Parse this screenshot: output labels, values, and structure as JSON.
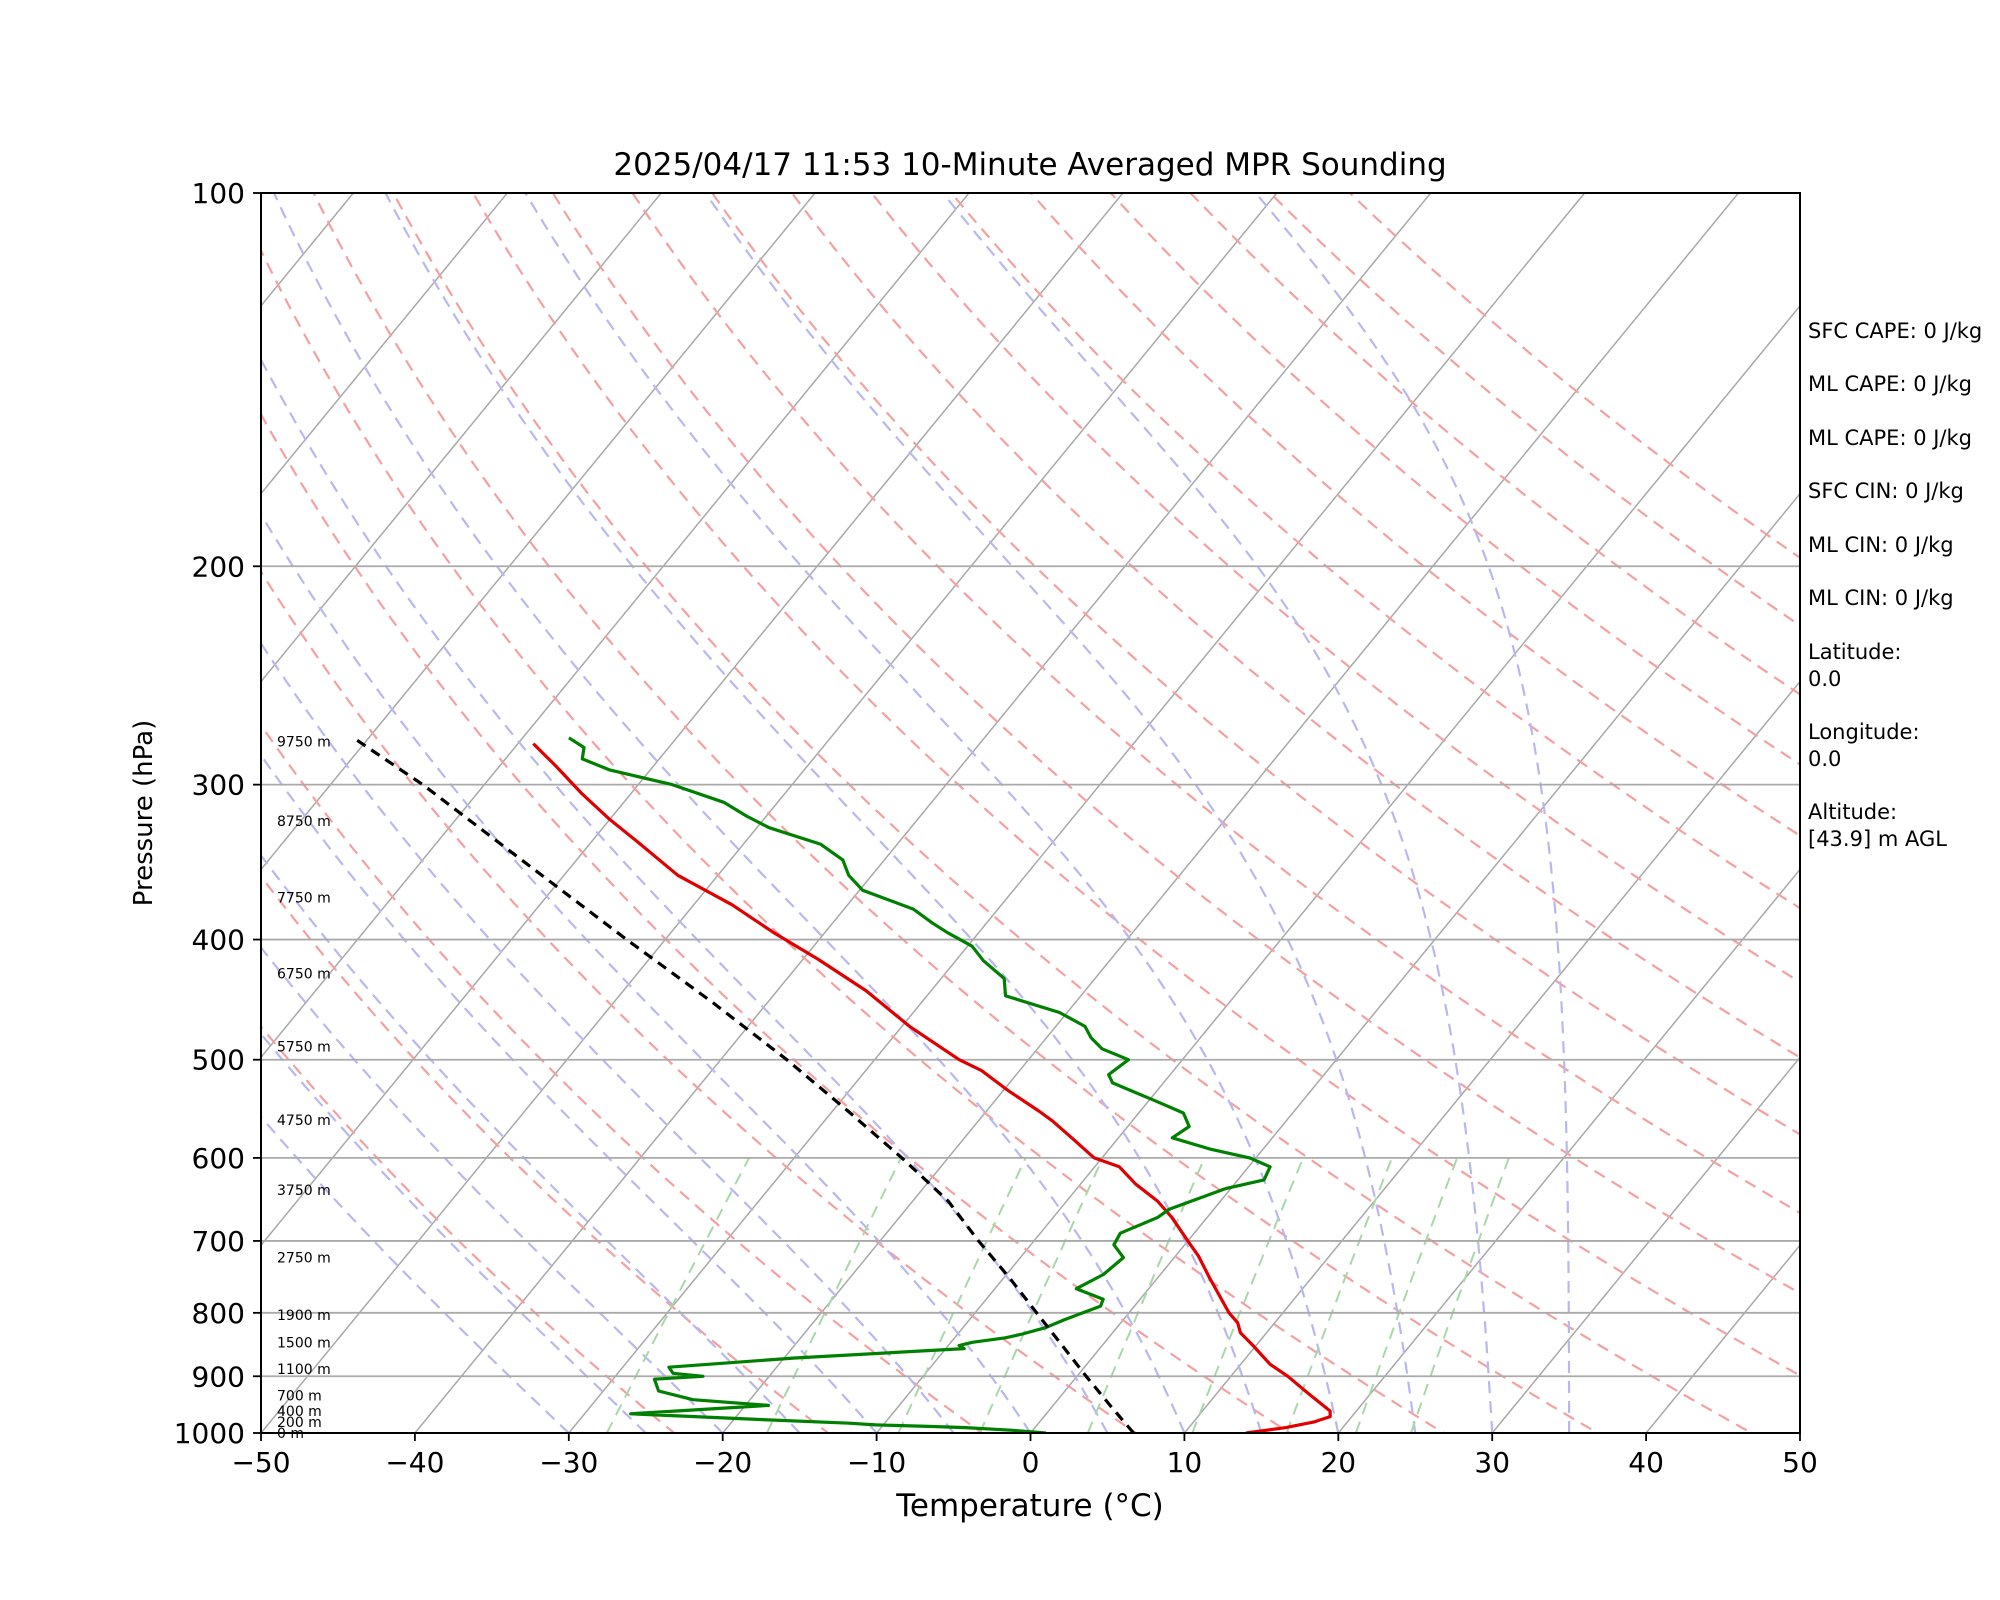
{
  "chart_data": {
    "type": "skew-t",
    "title": "2025/04/17 11:53 10-Minute Averaged MPR Sounding",
    "xlabel": "Temperature (°C)",
    "ylabel": "Pressure (hPa)",
    "xlim": [
      -50,
      50
    ],
    "ylim": [
      1000,
      100
    ],
    "y_scale": "log",
    "x_ticks": [
      "−50",
      "−40",
      "−30",
      "−20",
      "−10",
      "0",
      "10",
      "20",
      "30",
      "40",
      "50"
    ],
    "y_ticks": [
      "100",
      "200",
      "300",
      "400",
      "500",
      "600",
      "700",
      "800",
      "900",
      "1000"
    ],
    "grid": "horizontal isobars at tick levels",
    "background_lines": [
      "dry adiabats (red dashed)",
      "moist adiabats (blue dashed)",
      "mixing ratio lines (green dashed)",
      "skewed isotherms (gray)"
    ],
    "height_labels": [
      {
        "text": "0 m",
        "p": 1000
      },
      {
        "text": "200 m",
        "p": 980
      },
      {
        "text": "400 m",
        "p": 960
      },
      {
        "text": "700 m",
        "p": 933
      },
      {
        "text": "1100 m",
        "p": 888
      },
      {
        "text": "1500 m",
        "p": 845
      },
      {
        "text": "1900 m",
        "p": 803
      },
      {
        "text": "2750 m",
        "p": 722
      },
      {
        "text": "3750 m",
        "p": 637
      },
      {
        "text": "4750 m",
        "p": 559
      },
      {
        "text": "5750 m",
        "p": 488
      },
      {
        "text": "6750 m",
        "p": 426
      },
      {
        "text": "7750 m",
        "p": 370
      },
      {
        "text": "8750 m",
        "p": 321
      },
      {
        "text": "9750 m",
        "p": 277
      }
    ],
    "series": [
      {
        "key": "temperature",
        "color": "#e00000",
        "points": [
          [
            14,
            1000
          ],
          [
            16.3,
            990
          ],
          [
            17.8,
            980
          ],
          [
            18.6,
            970
          ],
          [
            18.3,
            960
          ],
          [
            16,
            930
          ],
          [
            13.7,
            900
          ],
          [
            11.9,
            880
          ],
          [
            9.8,
            850
          ],
          [
            8.3,
            830
          ],
          [
            7.6,
            815
          ],
          [
            6.5,
            800
          ],
          [
            3.4,
            750
          ],
          [
            1.5,
            720
          ],
          [
            0,
            700
          ],
          [
            -2.3,
            670
          ],
          [
            -4.1,
            650
          ],
          [
            -6.4,
            630
          ],
          [
            -8.4,
            610
          ],
          [
            -10.5,
            600
          ],
          [
            -12.8,
            580
          ],
          [
            -15.2,
            560
          ],
          [
            -16.6,
            550
          ],
          [
            -19.6,
            530
          ],
          [
            -22.5,
            510
          ],
          [
            -24.5,
            500
          ],
          [
            -29.5,
            470
          ],
          [
            -34.2,
            440
          ],
          [
            -39,
            415
          ],
          [
            -43.3,
            395
          ],
          [
            -47.5,
            375
          ],
          [
            -52.6,
            355
          ],
          [
            -56.7,
            335
          ],
          [
            -60,
            320
          ],
          [
            -63.2,
            305
          ],
          [
            -66.3,
            290
          ],
          [
            -69,
            278
          ]
        ]
      },
      {
        "key": "dewpoint",
        "color": "#008000",
        "points": [
          [
            1,
            1000
          ],
          [
            -1.3,
            995
          ],
          [
            -4.5,
            990
          ],
          [
            -6.7,
            988
          ],
          [
            -10.5,
            985
          ],
          [
            -12.3,
            982
          ],
          [
            -18.5,
            975
          ],
          [
            -27,
            965
          ],
          [
            -18.5,
            950
          ],
          [
            -23.7,
            940
          ],
          [
            -26.4,
            925
          ],
          [
            -27.3,
            905
          ],
          [
            -24.3,
            900
          ],
          [
            -26.4,
            895
          ],
          [
            -27,
            885
          ],
          [
            -19.3,
            870
          ],
          [
            -8.8,
            855
          ],
          [
            -9.3,
            850
          ],
          [
            -8.6,
            845
          ],
          [
            -6.7,
            838
          ],
          [
            -5.8,
            832
          ],
          [
            -4.6,
            822
          ],
          [
            -3.8,
            810
          ],
          [
            -2.2,
            790
          ],
          [
            -2.4,
            780
          ],
          [
            -4.7,
            765
          ],
          [
            -3.7,
            745
          ],
          [
            -3.3,
            722
          ],
          [
            -4.6,
            705
          ],
          [
            -4.8,
            690
          ],
          [
            -3.2,
            670
          ],
          [
            -2.9,
            660
          ],
          [
            -0.3,
            635
          ],
          [
            1.7,
            625
          ],
          [
            1.4,
            610
          ],
          [
            -0.4,
            600
          ],
          [
            -3.5,
            590
          ],
          [
            -6.5,
            578
          ],
          [
            -6,
            566
          ],
          [
            -7.1,
            552
          ],
          [
            -9.5,
            540
          ],
          [
            -13.3,
            522
          ],
          [
            -14,
            514
          ],
          [
            -13.5,
            500
          ],
          [
            -15.8,
            490
          ],
          [
            -17.1,
            480
          ],
          [
            -18.1,
            470
          ],
          [
            -20.5,
            458
          ],
          [
            -24.9,
            444
          ],
          [
            -25.9,
            430
          ],
          [
            -28.2,
            416
          ],
          [
            -29.7,
            405
          ],
          [
            -32,
            395
          ],
          [
            -33.5,
            388
          ],
          [
            -35.5,
            378
          ],
          [
            -39.8,
            365
          ],
          [
            -41.5,
            355
          ],
          [
            -42.7,
            345
          ],
          [
            -45,
            335
          ],
          [
            -49.2,
            325
          ],
          [
            -51.3,
            318
          ],
          [
            -53.5,
            310
          ],
          [
            -57.8,
            300
          ],
          [
            -62.6,
            292
          ],
          [
            -65,
            286
          ],
          [
            -65.5,
            280
          ],
          [
            -67,
            275
          ]
        ]
      },
      {
        "key": "parcel",
        "color": "#000000",
        "points": [
          [
            6.7,
            1000
          ],
          [
            3.7,
            950
          ],
          [
            0.6,
            900
          ],
          [
            -2.6,
            850
          ],
          [
            -6,
            800
          ],
          [
            -9.6,
            750
          ],
          [
            -13.6,
            700
          ],
          [
            -17.7,
            650
          ],
          [
            -23,
            600
          ],
          [
            -29,
            550
          ],
          [
            -35.7,
            500
          ],
          [
            -43.5,
            450
          ],
          [
            -52.5,
            400
          ],
          [
            -62.5,
            350
          ],
          [
            -74,
            300
          ],
          [
            -81,
            275
          ]
        ]
      }
    ]
  },
  "side_panel": {
    "sfc_cape": "SFC CAPE: 0 J/kg",
    "ml_cape_1": "ML CAPE: 0 J/kg",
    "ml_cape_2": "ML CAPE: 0 J/kg",
    "sfc_cin": "SFC CIN: 0 J/kg",
    "ml_cin_1": "ML CIN: 0 J/kg",
    "ml_cin_2": "ML CIN: 0 J/kg",
    "latitude": "Latitude:\n0.0",
    "longitude": "Longitude:\n0.0",
    "altitude": "Altitude:\n[43.9] m AGL"
  }
}
